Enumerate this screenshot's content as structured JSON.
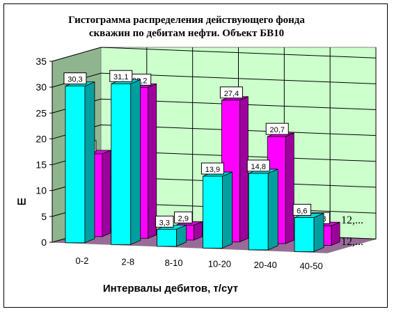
{
  "chart_data": {
    "type": "bar",
    "title_line1": "Гистограмма распределения действующего фонда",
    "title_line2": "скважин по дебитам нефти. Объект БВ10",
    "xlabel": "Интервалы дебитов, т/сут",
    "ylabel": "Ш",
    "ylim": [
      0,
      35
    ],
    "yticks": [
      "0",
      "5",
      "10",
      "15",
      "20",
      "25",
      "30",
      "35"
    ],
    "categories": [
      "0-2",
      "2-8",
      "8-10",
      "10-20",
      "20-40",
      "40-50"
    ],
    "grid": true,
    "series": [
      {
        "name": "12,...",
        "color": "#ff00ff",
        "values": [
          16,
          29.2,
          2.9,
          27.4,
          20.7,
          3.8
        ],
        "labels": [
          "16",
          "29,2",
          "2,9",
          "27,4",
          "20,7",
          "3,8"
        ]
      },
      {
        "name": "12,...",
        "color": "#00ffff",
        "values": [
          30.3,
          31.1,
          3.3,
          13.9,
          14.8,
          6.6
        ],
        "labels": [
          "30,3",
          "31,1",
          "3,3",
          "13,9",
          "14,8",
          "6,6"
        ]
      }
    ]
  }
}
